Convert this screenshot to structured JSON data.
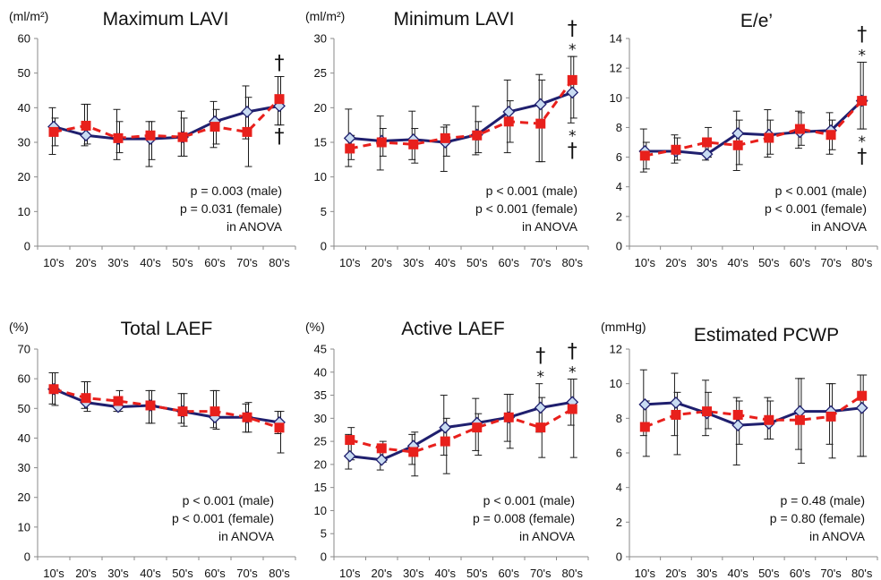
{
  "chart_data": [
    {
      "type": "line",
      "title": "Maximum LAVI",
      "unit": "(ml/m²)",
      "categories": [
        "10's",
        "20's",
        "30's",
        "40's",
        "50's",
        "60's",
        "70's",
        "80's"
      ],
      "ylim": [
        0,
        60
      ],
      "yticks": [
        0,
        10,
        20,
        30,
        40,
        50,
        60
      ],
      "series": [
        {
          "key": "male",
          "color": "#1f1f6e",
          "marker": "diamond",
          "line": "solid",
          "values": [
            34.5,
            32.0,
            31.0,
            31.0,
            31.5,
            36.0,
            38.8,
            40.5
          ],
          "err_low": [
            26.5,
            29.0,
            25.0,
            23.0,
            26.0,
            28.5,
            31.0,
            35.0
          ],
          "err_high": [
            40.0,
            41.0,
            39.5,
            36.0,
            39.0,
            41.8,
            46.3,
            49.0
          ]
        },
        {
          "key": "female",
          "color": "#e8201c",
          "marker": "square",
          "line": "dashed",
          "values": [
            33.0,
            34.8,
            31.2,
            32.0,
            31.5,
            34.5,
            33.0,
            42.5
          ],
          "err_low": [
            29.0,
            29.5,
            27.0,
            25.0,
            26.0,
            29.5,
            23.0,
            35.0
          ],
          "err_high": [
            37.0,
            41.0,
            36.0,
            36.0,
            37.0,
            39.5,
            43.0,
            49.0
          ]
        }
      ],
      "annotations": [
        {
          "category": "80's",
          "position": "above",
          "symbols": [
            "†"
          ]
        },
        {
          "category": "80's",
          "position": "below",
          "symbols": [
            "†"
          ]
        }
      ],
      "notes": [
        "p = 0.003 (male)",
        "p = 0.031 (female)",
        "in ANOVA"
      ]
    },
    {
      "type": "line",
      "title": "Minimum LAVI",
      "unit": "(ml/m²)",
      "categories": [
        "10's",
        "20's",
        "30's",
        "40's",
        "50's",
        "60's",
        "70's",
        "80's"
      ],
      "ylim": [
        0,
        30
      ],
      "yticks": [
        0,
        5,
        10,
        15,
        20,
        25,
        30
      ],
      "series": [
        {
          "key": "male",
          "color": "#1f1f6e",
          "marker": "diamond",
          "line": "solid",
          "values": [
            15.6,
            15.2,
            15.4,
            15.0,
            16.1,
            19.4,
            20.5,
            22.2
          ],
          "err_low": [
            11.5,
            11.0,
            12.5,
            10.8,
            13.2,
            13.5,
            12.2,
            17.8
          ],
          "err_high": [
            19.8,
            18.8,
            19.5,
            17.2,
            20.2,
            24.0,
            24.8,
            27.4
          ]
        },
        {
          "key": "female",
          "color": "#e8201c",
          "marker": "square",
          "line": "dashed",
          "values": [
            14.1,
            15.0,
            14.7,
            15.6,
            16.0,
            18.0,
            17.7,
            24.0
          ],
          "err_low": [
            12.5,
            13.0,
            12.0,
            13.0,
            13.5,
            15.0,
            12.2,
            18.5
          ],
          "err_high": [
            16.0,
            17.0,
            17.0,
            17.5,
            18.0,
            21.0,
            24.0,
            27.4
          ]
        }
      ],
      "annotations": [
        {
          "category": "80's",
          "position": "above",
          "symbols": [
            "†",
            "*"
          ]
        },
        {
          "category": "80's",
          "position": "below",
          "symbols": [
            "*",
            "†"
          ]
        }
      ],
      "notes": [
        "p < 0.001 (male)",
        "p < 0.001 (female)",
        "in ANOVA"
      ]
    },
    {
      "type": "line",
      "title": "E/e’",
      "unit": "",
      "categories": [
        "10's",
        "20's",
        "30's",
        "40's",
        "50's",
        "60's",
        "70's",
        "80's"
      ],
      "ylim": [
        0,
        14
      ],
      "yticks": [
        0,
        2,
        4,
        6,
        8,
        10,
        12,
        14
      ],
      "series": [
        {
          "key": "male",
          "color": "#1f1f6e",
          "marker": "diamond",
          "line": "solid",
          "values": [
            6.4,
            6.4,
            6.2,
            7.6,
            7.5,
            7.7,
            7.8,
            9.8
          ],
          "err_low": [
            5.0,
            5.6,
            5.8,
            5.1,
            6.0,
            6.6,
            6.2,
            7.9
          ],
          "err_high": [
            7.9,
            7.5,
            7.2,
            9.1,
            9.2,
            9.1,
            9.0,
            12.4
          ]
        },
        {
          "key": "female",
          "color": "#e8201c",
          "marker": "square",
          "line": "dashed",
          "values": [
            6.1,
            6.5,
            7.0,
            6.8,
            7.3,
            7.9,
            7.5,
            9.8
          ],
          "err_low": [
            5.2,
            5.8,
            6.0,
            5.5,
            6.2,
            6.8,
            6.5,
            7.9
          ],
          "err_high": [
            7.0,
            7.3,
            8.0,
            8.5,
            8.5,
            9.0,
            8.5,
            12.4
          ]
        }
      ],
      "annotations": [
        {
          "category": "80's",
          "position": "above",
          "symbols": [
            "†",
            "*"
          ]
        },
        {
          "category": "80's",
          "position": "below",
          "symbols": [
            "*",
            "†"
          ]
        }
      ],
      "notes": [
        "p < 0.001 (male)",
        "p < 0.001 (female)",
        "in ANOVA"
      ]
    },
    {
      "type": "line",
      "title": "Total LAEF",
      "unit": "(%)",
      "categories": [
        "10's",
        "20's",
        "30's",
        "40's",
        "50's",
        "60's",
        "70's",
        "80's"
      ],
      "ylim": [
        0,
        70
      ],
      "yticks": [
        0,
        10,
        20,
        30,
        40,
        50,
        60,
        70
      ],
      "series": [
        {
          "key": "male",
          "color": "#1f1f6e",
          "marker": "diamond",
          "line": "solid",
          "values": [
            56.5,
            52.0,
            50.5,
            51.0,
            49.0,
            47.0,
            47.0,
            45.3
          ],
          "err_low": [
            51.5,
            50.0,
            49.0,
            45.0,
            45.0,
            43.5,
            42.0,
            41.5
          ],
          "err_high": [
            62.0,
            59.0,
            54.0,
            56.0,
            55.0,
            56.0,
            51.5,
            49.0
          ]
        },
        {
          "key": "female",
          "color": "#e8201c",
          "marker": "square",
          "line": "dashed",
          "values": [
            56.5,
            53.5,
            52.5,
            51.0,
            49.0,
            49.0,
            47.0,
            43.5
          ],
          "err_low": [
            51.0,
            49.0,
            49.0,
            45.0,
            44.0,
            43.0,
            42.0,
            35.0
          ],
          "err_high": [
            62.0,
            59.0,
            56.0,
            56.0,
            55.0,
            56.0,
            52.0,
            49.0
          ]
        }
      ],
      "annotations": [],
      "notes": [
        "p < 0.001 (male)",
        "p < 0.001 (female)",
        "in ANOVA"
      ]
    },
    {
      "type": "line",
      "title": "Active LAEF",
      "unit": "(%)",
      "categories": [
        "10's",
        "20's",
        "30's",
        "40's",
        "50's",
        "60's",
        "70's",
        "80's"
      ],
      "ylim": [
        0,
        45
      ],
      "yticks": [
        0,
        5,
        10,
        15,
        20,
        25,
        30,
        35,
        40,
        45
      ],
      "series": [
        {
          "key": "male",
          "color": "#1f1f6e",
          "marker": "diamond",
          "line": "solid",
          "values": [
            21.8,
            21.0,
            24.0,
            28.0,
            29.0,
            30.2,
            32.3,
            33.5
          ],
          "err_low": [
            19.0,
            18.8,
            20.0,
            22.0,
            23.0,
            25.0,
            27.0,
            28.5
          ],
          "err_high": [
            26.5,
            24.0,
            26.5,
            35.0,
            34.3,
            35.2,
            37.5,
            38.5
          ]
        },
        {
          "key": "female",
          "color": "#e8201c",
          "marker": "square",
          "line": "dashed",
          "values": [
            25.3,
            23.5,
            22.7,
            25.0,
            28.0,
            30.2,
            28.0,
            32.0
          ],
          "err_low": [
            21.0,
            20.5,
            17.5,
            18.0,
            22.0,
            23.5,
            21.5,
            21.5
          ],
          "err_high": [
            28.0,
            25.0,
            27.0,
            30.0,
            31.0,
            35.2,
            34.5,
            38.5
          ]
        }
      ],
      "annotations": [
        {
          "category": "70's",
          "position": "above",
          "symbols": [
            "†",
            "*"
          ]
        },
        {
          "category": "80's",
          "position": "above",
          "symbols": [
            "†",
            "*"
          ]
        }
      ],
      "notes": [
        "p < 0.001 (male)",
        "p = 0.008 (female)",
        "in ANOVA"
      ]
    },
    {
      "type": "line",
      "title": "Estimated PCWP",
      "unit": "(mmHg)",
      "categories": [
        "10's",
        "20's",
        "30's",
        "40's",
        "50's",
        "60's",
        "70's",
        "80's"
      ],
      "ylim": [
        0,
        12
      ],
      "yticks": [
        0,
        2,
        4,
        6,
        8,
        10,
        12
      ],
      "series": [
        {
          "key": "male",
          "color": "#1f1f6e",
          "marker": "diamond",
          "line": "solid",
          "values": [
            8.8,
            8.9,
            8.3,
            7.6,
            7.7,
            8.4,
            8.4,
            8.6
          ],
          "err_low": [
            7.0,
            7.0,
            7.0,
            5.3,
            6.8,
            6.2,
            6.5,
            5.8
          ],
          "err_high": [
            10.8,
            10.6,
            10.2,
            9.2,
            9.2,
            10.3,
            10.0,
            10.5
          ]
        },
        {
          "key": "female",
          "color": "#e8201c",
          "marker": "square",
          "line": "dashed",
          "values": [
            7.5,
            8.2,
            8.4,
            8.2,
            7.9,
            7.9,
            8.1,
            9.3
          ],
          "err_low": [
            5.8,
            5.9,
            7.4,
            6.5,
            6.8,
            5.4,
            5.7,
            5.8
          ],
          "err_high": [
            9.0,
            9.5,
            9.5,
            9.0,
            9.0,
            10.3,
            10.0,
            10.5
          ]
        }
      ],
      "annotations": [],
      "notes": [
        "p = 0.48 (male)",
        "p = 0.80 (female)",
        "in ANOVA"
      ]
    }
  ]
}
